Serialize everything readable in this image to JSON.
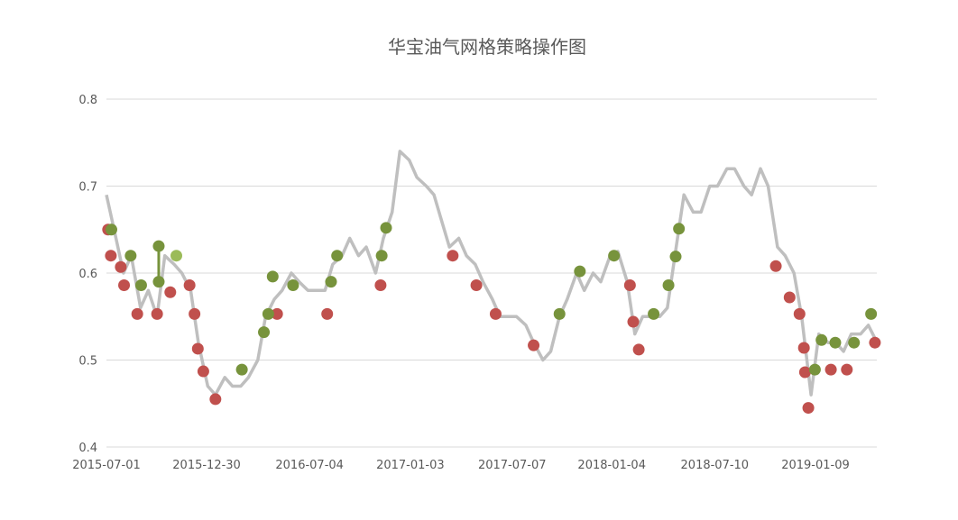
{
  "chart_data": {
    "type": "line",
    "title": "华宝油气网格策略操作图",
    "xlabel": "",
    "ylabel": "",
    "ylim": [
      0.4,
      0.8
    ],
    "yticks": [
      "0.4",
      "0.5",
      "0.6",
      "0.7",
      "0.8"
    ],
    "xticks": [
      "2015-07-01",
      "2015-12-30",
      "2016-07-04",
      "2017-01-03",
      "2017-07-07",
      "2018-01-04",
      "2018-07-10",
      "2019-01-09"
    ],
    "grid": "horizontal",
    "legend": "none",
    "colors": {
      "line": "#bfbfbf",
      "red_marker": "#c0504d",
      "green_marker": "#77933c",
      "light_green_marker": "#9bbb59",
      "grid": "#d9d9d9",
      "text": "#595959"
    },
    "series": [
      {
        "x": [
          "2015-07-01",
          "2015-07-15",
          "2015-08-01",
          "2015-08-15",
          "2015-09-01",
          "2015-09-15",
          "2015-10-01",
          "2015-10-15",
          "2015-11-01",
          "2015-11-15",
          "2015-12-01",
          "2015-12-15",
          "2016-01-01",
          "2016-01-15",
          "2016-02-01",
          "2016-02-15",
          "2016-03-01",
          "2016-03-15",
          "2016-04-01",
          "2016-04-15",
          "2016-05-01",
          "2016-05-15",
          "2016-06-01",
          "2016-06-15",
          "2016-07-01",
          "2016-07-15",
          "2016-08-01",
          "2016-08-15",
          "2016-09-01",
          "2016-09-15",
          "2016-10-01",
          "2016-10-15",
          "2016-11-01",
          "2016-11-15",
          "2016-12-01",
          "2016-12-15",
          "2017-01-01",
          "2017-01-15",
          "2017-02-01",
          "2017-02-15",
          "2017-03-01",
          "2017-03-15",
          "2017-04-01",
          "2017-04-15",
          "2017-05-01",
          "2017-05-15",
          "2017-06-01",
          "2017-06-15",
          "2017-07-01",
          "2017-07-15",
          "2017-08-01",
          "2017-08-15",
          "2017-09-01",
          "2017-09-15",
          "2017-10-01",
          "2017-10-15",
          "2017-11-01",
          "2017-11-15",
          "2017-12-01",
          "2017-12-15",
          "2018-01-01",
          "2018-01-15",
          "2018-02-01",
          "2018-02-15",
          "2018-03-01",
          "2018-03-15",
          "2018-04-01",
          "2018-04-15",
          "2018-05-01",
          "2018-05-15",
          "2018-06-01",
          "2018-06-15",
          "2018-07-01",
          "2018-07-15",
          "2018-08-01",
          "2018-08-15",
          "2018-09-01",
          "2018-09-15",
          "2018-10-01",
          "2018-10-15",
          "2018-11-01",
          "2018-11-15",
          "2018-12-01",
          "2018-12-15",
          "2019-01-01",
          "2019-01-15",
          "2019-02-01",
          "2019-02-15",
          "2019-03-01",
          "2019-03-15",
          "2019-04-01",
          "2019-04-15",
          "2019-05-01"
        ],
        "values": [
          0.69,
          0.65,
          0.6,
          0.62,
          0.56,
          0.58,
          0.55,
          0.62,
          0.61,
          0.6,
          0.58,
          0.52,
          0.47,
          0.46,
          0.48,
          0.47,
          0.47,
          0.48,
          0.5,
          0.55,
          0.57,
          0.58,
          0.6,
          0.59,
          0.58,
          0.58,
          0.58,
          0.61,
          0.62,
          0.64,
          0.62,
          0.63,
          0.6,
          0.64,
          0.67,
          0.74,
          0.73,
          0.71,
          0.7,
          0.69,
          0.66,
          0.63,
          0.64,
          0.62,
          0.61,
          0.59,
          0.57,
          0.55,
          0.55,
          0.55,
          0.54,
          0.52,
          0.5,
          0.51,
          0.55,
          0.57,
          0.6,
          0.58,
          0.6,
          0.59,
          0.62,
          0.625,
          0.59,
          0.53,
          0.55,
          0.55,
          0.55,
          0.56,
          0.63,
          0.69,
          0.67,
          0.67,
          0.7,
          0.7,
          0.72,
          0.72,
          0.7,
          0.69,
          0.72,
          0.7,
          0.63,
          0.62,
          0.6,
          0.55,
          0.46,
          0.53,
          0.52,
          0.52,
          0.51,
          0.53,
          0.53,
          0.54,
          0.52
        ]
      }
    ],
    "markers": {
      "red": [
        [
          "2015-07-04",
          0.65
        ],
        [
          "2015-07-09",
          0.62
        ],
        [
          "2015-07-27",
          0.607
        ],
        [
          "2015-08-02",
          0.586
        ],
        [
          "2015-08-26",
          0.553
        ],
        [
          "2015-10-01",
          0.553
        ],
        [
          "2015-10-25",
          0.578
        ],
        [
          "2015-11-29",
          0.586
        ],
        [
          "2015-12-08",
          0.553
        ],
        [
          "2015-12-14",
          0.513
        ],
        [
          "2015-12-24",
          0.487
        ],
        [
          "2016-01-15",
          0.455
        ],
        [
          "2016-05-06",
          0.553
        ],
        [
          "2016-08-05",
          0.553
        ],
        [
          "2016-11-10",
          0.586
        ],
        [
          "2017-03-21",
          0.62
        ],
        [
          "2017-05-03",
          0.586
        ],
        [
          "2017-06-07",
          0.553
        ],
        [
          "2017-08-15",
          0.517
        ],
        [
          "2018-02-06",
          0.586
        ],
        [
          "2018-02-12",
          0.544
        ],
        [
          "2018-02-22",
          0.512
        ],
        [
          "2018-10-29",
          0.608
        ],
        [
          "2018-11-23",
          0.572
        ],
        [
          "2018-12-11",
          0.553
        ],
        [
          "2018-12-19",
          0.514
        ],
        [
          "2018-12-21",
          0.486
        ],
        [
          "2018-12-27",
          0.445
        ],
        [
          "2019-02-06",
          0.489
        ],
        [
          "2019-03-07",
          0.489
        ],
        [
          "2019-04-27",
          0.52
        ]
      ],
      "green": [
        [
          "2015-07-10",
          0.65
        ],
        [
          "2015-08-14",
          0.62
        ],
        [
          "2015-09-02",
          0.586
        ],
        [
          "2015-10-04",
          0.631
        ],
        [
          "2015-10-04",
          0.59
        ],
        [
          "2016-03-03",
          0.489
        ],
        [
          "2016-04-12",
          0.532
        ],
        [
          "2016-04-20",
          0.553
        ],
        [
          "2016-04-28",
          0.596
        ],
        [
          "2016-06-04",
          0.586
        ],
        [
          "2016-08-12",
          0.59
        ],
        [
          "2016-08-23",
          0.62
        ],
        [
          "2016-11-12",
          0.62
        ],
        [
          "2016-11-20",
          0.652
        ],
        [
          "2017-10-01",
          0.553
        ],
        [
          "2017-11-07",
          0.602
        ],
        [
          "2018-01-08",
          0.62
        ],
        [
          "2018-03-21",
          0.553
        ],
        [
          "2018-04-17",
          0.586
        ],
        [
          "2018-04-30",
          0.619
        ],
        [
          "2018-05-06",
          0.651
        ],
        [
          "2019-01-08",
          0.489
        ],
        [
          "2019-01-20",
          0.523
        ],
        [
          "2019-02-14",
          0.52
        ],
        [
          "2019-03-20",
          0.52
        ],
        [
          "2019-04-20",
          0.553
        ]
      ],
      "light_green": [
        [
          "2015-11-05",
          0.62
        ]
      ],
      "green_segments": [
        [
          [
            "2015-10-04",
            0.631
          ],
          [
            "2015-10-04",
            0.59
          ]
        ]
      ]
    }
  }
}
